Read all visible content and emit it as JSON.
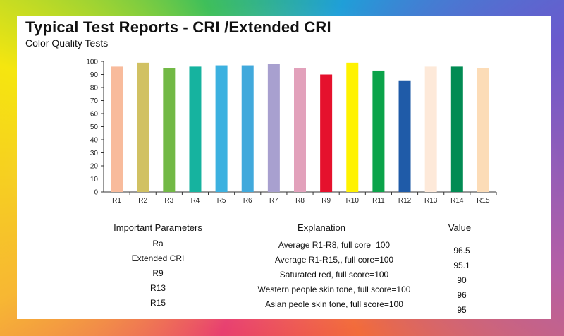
{
  "header": {
    "title": "Typical Test Reports - CRI /Extended CRI",
    "subtitle": "Color Quality Tests"
  },
  "chart_data": {
    "type": "bar",
    "categories": [
      "R1",
      "R2",
      "R3",
      "R4",
      "R5",
      "R6",
      "R7",
      "R8",
      "R9",
      "R10",
      "R11",
      "R12",
      "R13",
      "R14",
      "R15"
    ],
    "values": [
      96,
      99,
      95,
      96,
      97,
      97,
      98,
      95,
      90,
      99,
      93,
      85,
      96,
      96,
      95
    ],
    "colors": [
      "#f8bb9c",
      "#d1c163",
      "#72b945",
      "#16b39f",
      "#3cb1e0",
      "#41a9dc",
      "#a8a0cf",
      "#e2a1bb",
      "#e5112d",
      "#fff200",
      "#0ba34a",
      "#1f5ba8",
      "#fde9d9",
      "#018b53",
      "#fcdcb7"
    ],
    "ylim": [
      0,
      100
    ],
    "yticks": [
      0,
      10,
      20,
      30,
      40,
      50,
      60,
      70,
      80,
      90,
      100
    ],
    "grid": false,
    "title": "",
    "xlabel": "",
    "ylabel": ""
  },
  "table": {
    "headers": {
      "param": "Important Parameters",
      "explanation": "Explanation",
      "value": "Value"
    },
    "params": [
      "Ra",
      "Extended CRI",
      "R9",
      "R13",
      "R15"
    ],
    "explanations": [
      "Average R1-R8, full core=100",
      "Average R1-R15,, full core=100",
      "Saturated red, full score=100",
      "Western people skin tone, full score=100",
      "Asian peole skin tone, full score=100"
    ],
    "values": [
      "96.5",
      "95.1",
      "90",
      "96",
      "95"
    ]
  }
}
